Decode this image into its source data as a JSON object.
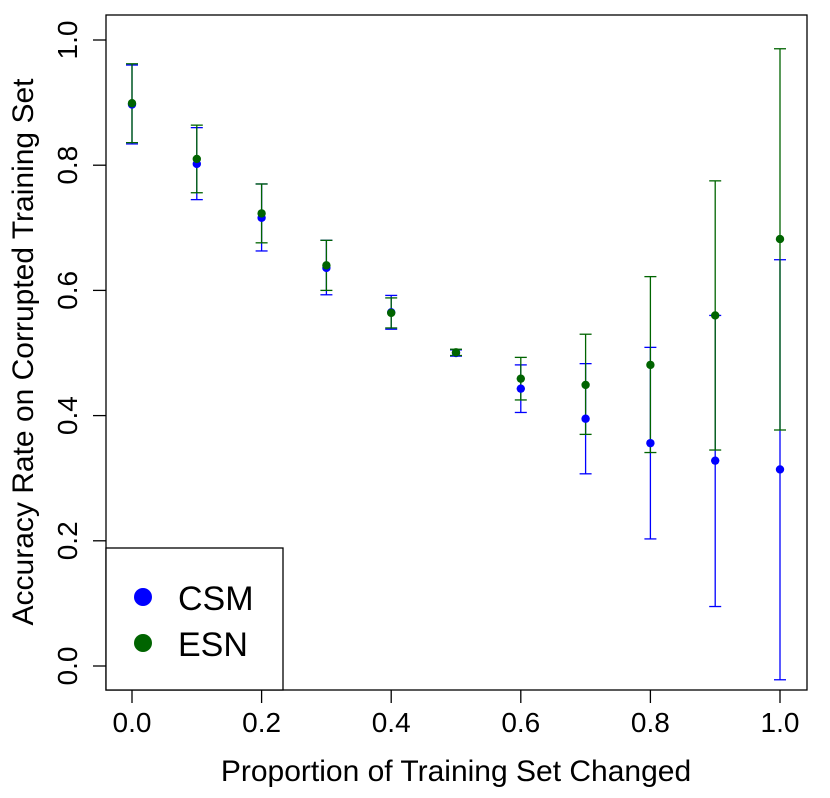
{
  "chart_data": {
    "type": "scatter",
    "title": "",
    "xlabel": "Proportion of Training Set Changed",
    "ylabel": "Accuracy Rate on Corrupted Training Set",
    "xlim": [
      0.0,
      1.0
    ],
    "ylim": [
      0.0,
      1.0
    ],
    "x_ticks": [
      "0.0",
      "0.2",
      "0.4",
      "0.6",
      "0.8",
      "1.0"
    ],
    "y_ticks": [
      "0.0",
      "0.2",
      "0.4",
      "0.6",
      "0.8",
      "1.0"
    ],
    "grid": false,
    "legend_position": "bottom-left",
    "x": [
      0.0,
      0.1,
      0.2,
      0.3,
      0.4,
      0.5,
      0.6,
      0.7,
      0.8,
      0.9,
      1.0
    ],
    "series": [
      {
        "name": "CSM",
        "color": "#0000ff",
        "values": [
          0.897,
          0.802,
          0.716,
          0.636,
          0.565,
          0.5,
          0.443,
          0.395,
          0.356,
          0.328,
          0.314
        ],
        "err_low": [
          0.834,
          0.745,
          0.663,
          0.593,
          0.538,
          0.495,
          0.405,
          0.307,
          0.203,
          0.095,
          -0.022
        ],
        "err_high": [
          0.96,
          0.86,
          0.77,
          0.68,
          0.592,
          0.505,
          0.481,
          0.483,
          0.509,
          0.56,
          0.649
        ]
      },
      {
        "name": "ESN",
        "color": "#006400",
        "values": [
          0.899,
          0.81,
          0.723,
          0.64,
          0.564,
          0.501,
          0.459,
          0.449,
          0.481,
          0.56,
          0.682
        ],
        "err_low": [
          0.836,
          0.756,
          0.676,
          0.6,
          0.54,
          0.496,
          0.425,
          0.37,
          0.341,
          0.345,
          0.377
        ],
        "err_high": [
          0.962,
          0.864,
          0.77,
          0.68,
          0.588,
          0.506,
          0.493,
          0.53,
          0.622,
          0.775,
          0.986
        ]
      }
    ]
  }
}
